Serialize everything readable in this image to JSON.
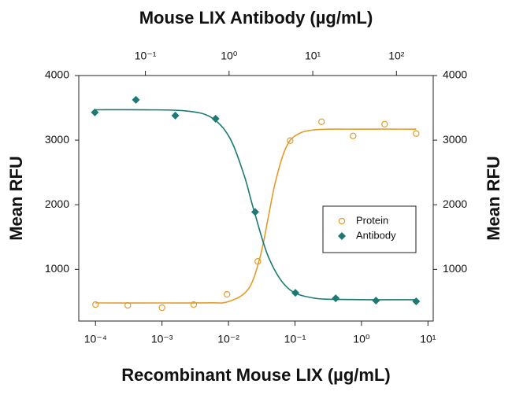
{
  "chart_data": {
    "type": "scatter",
    "title": "Mouse LIX Antibody (µg/mL)",
    "x_label": "Recombinant Mouse LIX (µg/mL)",
    "y_label": "Mean RFU",
    "y2_label": "Mean RFU",
    "xscale": "log",
    "x2scale": "log",
    "xlim": [
      5.6e-05,
      12
    ],
    "xticks": [
      {
        "value": 0.0001,
        "label": "10⁻⁴"
      },
      {
        "value": 0.001,
        "label": "10⁻³"
      },
      {
        "value": 0.01,
        "label": "10⁻²"
      },
      {
        "value": 0.1,
        "label": "10⁻¹"
      },
      {
        "value": 1,
        "label": "10⁰"
      },
      {
        "value": 10,
        "label": "10¹"
      }
    ],
    "x2lim": [
      0.016,
      275
    ],
    "x2ticks": [
      {
        "value": 0.1,
        "label": "10⁻¹"
      },
      {
        "value": 1,
        "label": "10⁰"
      },
      {
        "value": 10,
        "label": "10¹"
      },
      {
        "value": 100,
        "label": "10²"
      }
    ],
    "ylim": [
      200,
      4000
    ],
    "yticks": [
      1000,
      2000,
      3000,
      4000
    ],
    "y2lim": [
      200,
      4000
    ],
    "y2ticks": [
      1000,
      2000,
      3000,
      4000
    ],
    "legend": "center right",
    "series": [
      {
        "name": "Protein",
        "color": "#e39b2b",
        "marker": "circle",
        "x": [
          0.0001,
          0.000306,
          0.001,
          0.003,
          0.0095,
          0.0276,
          0.0845,
          0.251,
          0.748,
          2.23,
          6.64
        ],
        "values": [
          455,
          443,
          406,
          455,
          613,
          1123,
          2992,
          3284,
          3065,
          3247,
          3102
        ],
        "fit": {
          "x": [
            0.0001,
            0.001,
            0.005,
            0.01,
            0.02,
            0.03,
            0.04,
            0.05,
            0.07,
            0.1,
            0.2,
            1,
            6.64
          ],
          "values": [
            480,
            480,
            482,
            501,
            698,
            1201,
            1825,
            2325,
            2837,
            3065,
            3160,
            3170,
            3170
          ]
        }
      },
      {
        "name": "Antibody",
        "color": "#1d7a72",
        "marker": "diamond",
        "axis": "x2",
        "x": [
          0.0249,
          0.077,
          0.228,
          0.69,
          2.05,
          6.2,
          18.8,
          56.9,
          172
        ],
        "values": [
          3429,
          3624,
          3381,
          3332,
          1888,
          637,
          552,
          516,
          504
        ],
        "fit": {
          "x": [
            0.0249,
            0.1,
            0.3,
            0.6,
            1,
            1.5,
            2,
            3,
            5,
            10,
            30,
            172
          ],
          "values": [
            3470,
            3470,
            3453,
            3358,
            3054,
            2471,
            1894,
            1170,
            714,
            558,
            533,
            530
          ]
        }
      }
    ]
  }
}
